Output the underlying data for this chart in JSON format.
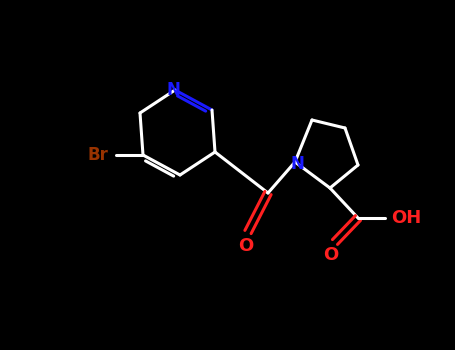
{
  "background_color": "#000000",
  "bond_color": "#ffffff",
  "nitrogen_color": "#1a1aff",
  "oxygen_color": "#ff2020",
  "bromine_color": "#993300",
  "label_N": "N",
  "label_N2": "N",
  "label_O1": "O",
  "label_O2": "O",
  "label_OH": "OH",
  "label_Br": "Br",
  "fig_width": 4.55,
  "fig_height": 3.5,
  "dpi": 100
}
